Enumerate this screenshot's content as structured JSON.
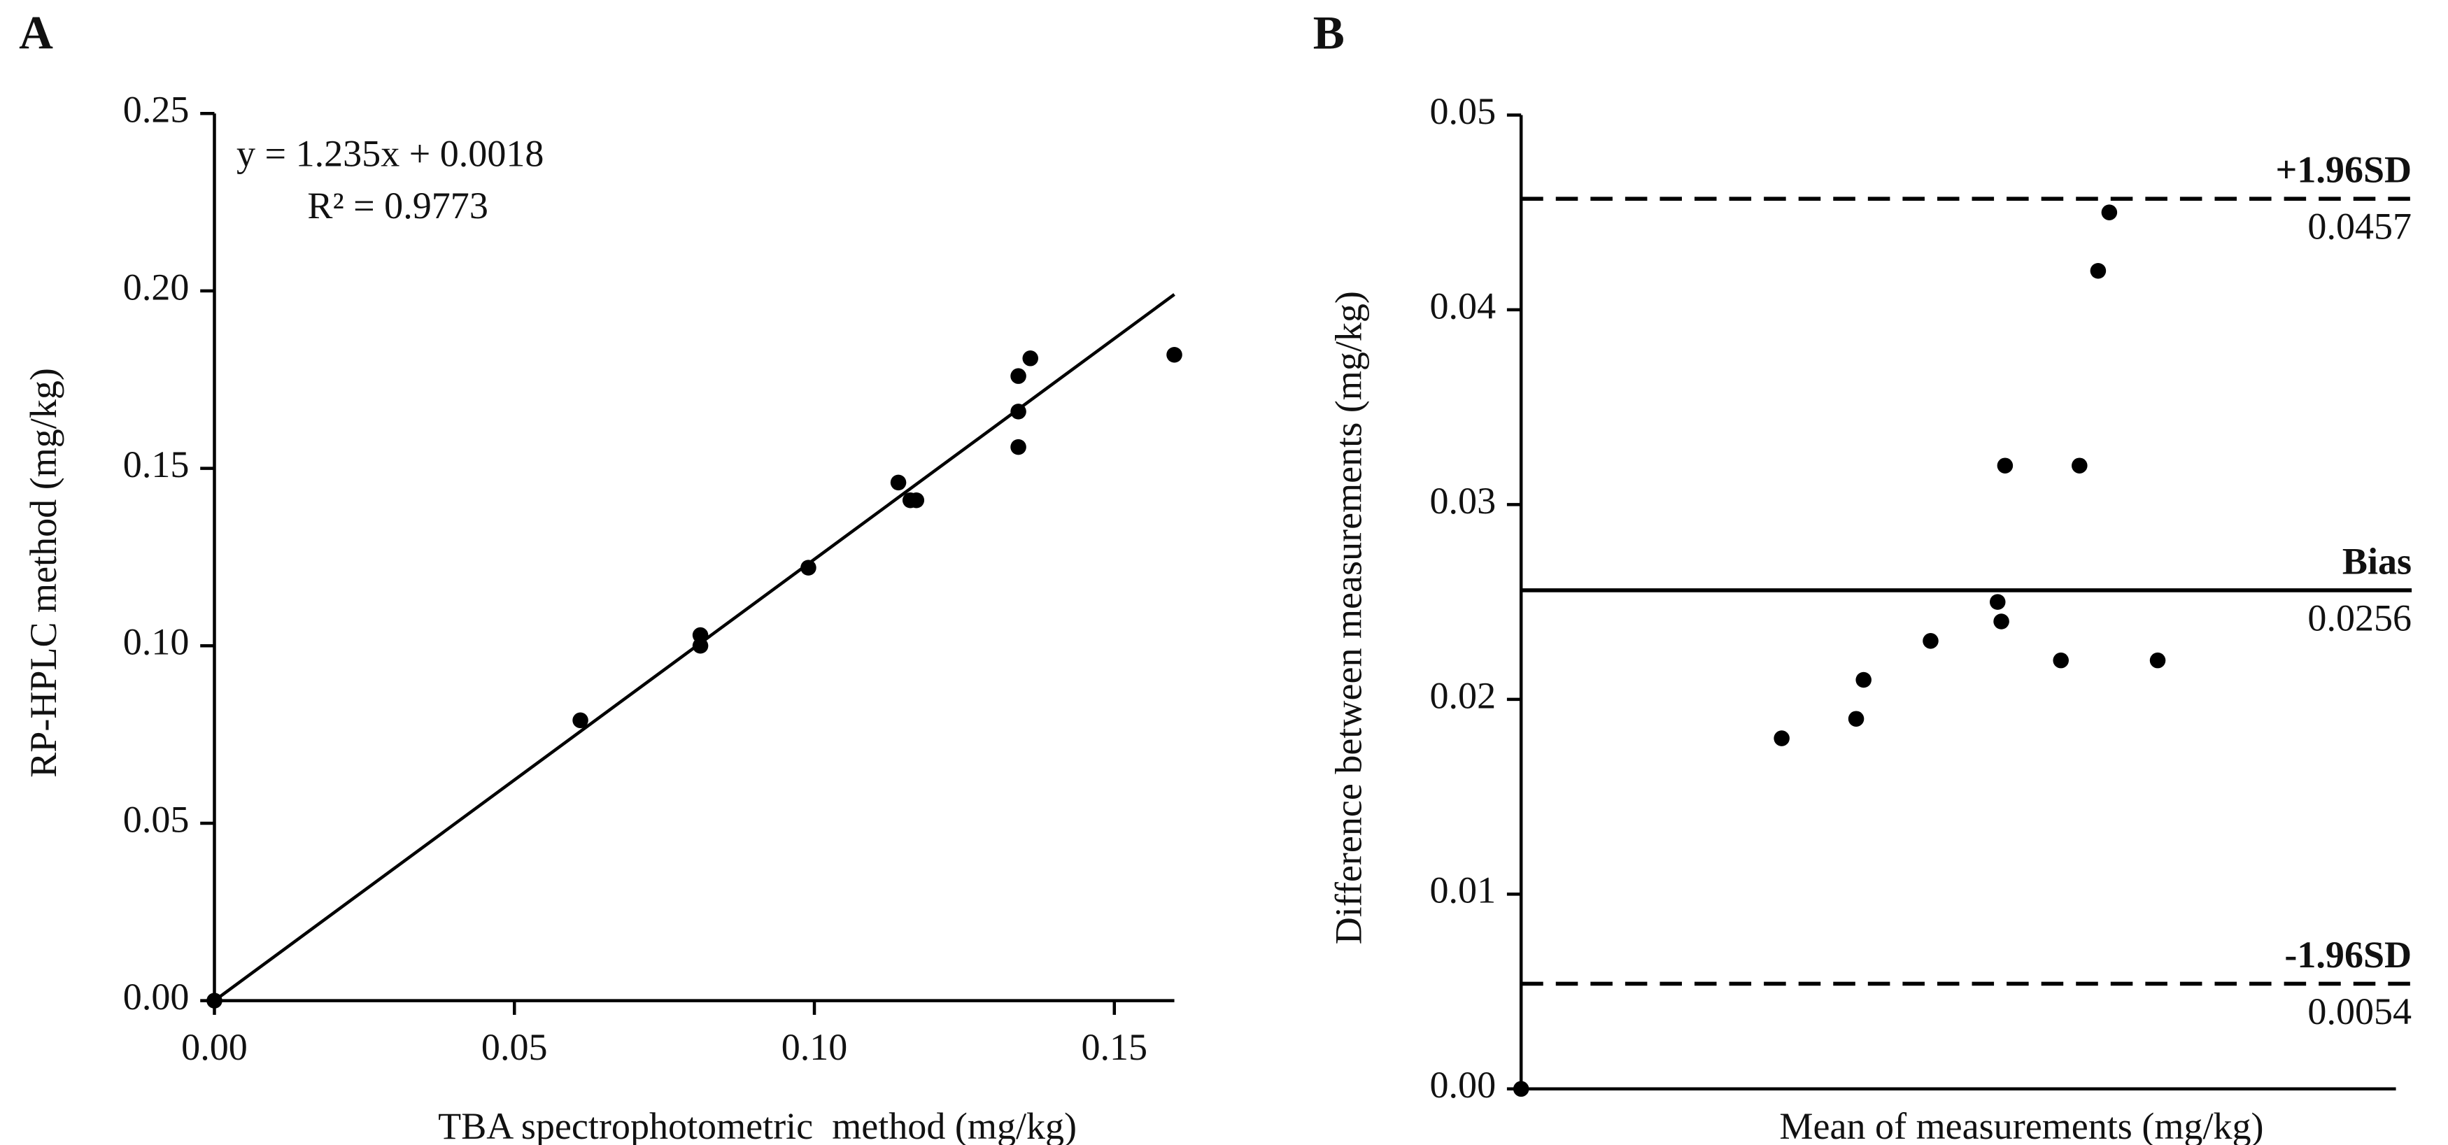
{
  "chart_data": [
    {
      "type": "scatter",
      "panel": "A",
      "annotations": [
        "y = 1.235x + 0.0018",
        "R² = 0.9773"
      ],
      "x_label": "TBA spectrophotometric  method (mg/kg)",
      "y_label": "RP-HPLC method (mg/kg)",
      "x": [
        0,
        0.061,
        0.081,
        0.081,
        0.099,
        0.114,
        0.116,
        0.117,
        0.134,
        0.134,
        0.134,
        0.136,
        0.16
      ],
      "values": [
        0,
        0.079,
        0.103,
        0.1,
        0.122,
        0.146,
        0.141,
        0.141,
        0.176,
        0.166,
        0.156,
        0.181,
        0.182
      ],
      "color": "#000000",
      "trendline": {
        "x": [
          0,
          0.16
        ],
        "y": [
          0,
          0.199
        ]
      },
      "xlim": [
        0,
        0.16
      ],
      "ylim": [
        0,
        0.25
      ],
      "xticks": [
        {
          "value": 0,
          "label": "0.00"
        },
        0.05,
        {
          "value": 0.1,
          "label": "0.10"
        },
        0.15
      ],
      "yticks": [
        {
          "value": 0,
          "label": "0.00"
        },
        0.05,
        {
          "value": 0.1,
          "label": "0.10"
        },
        0.15,
        {
          "value": 0.2,
          "label": "0.20"
        },
        0.25
      ]
    },
    {
      "type": "scatter",
      "panel": "B",
      "x_label": "Mean of measurements (mg/kg)",
      "y_label": "Difference between measurements (mg/kg)",
      "x": [
        0,
        0.07,
        0.09,
        0.092,
        0.11,
        0.128,
        0.129,
        0.13,
        0.145,
        0.15,
        0.155,
        0.158,
        0.171
      ],
      "values": [
        0,
        0.018,
        0.019,
        0.021,
        0.023,
        0.025,
        0.024,
        0.032,
        0.022,
        0.032,
        0.042,
        0.045,
        0.022
      ],
      "color": "#000000",
      "reference_lines": [
        {
          "name": "+1.96SD",
          "value": 0.0457,
          "style": "dashed"
        },
        {
          "name": "Bias",
          "value": 0.0256,
          "style": "solid"
        },
        {
          "name": "-1.96SD",
          "value": 0.0054,
          "style": "dashed"
        }
      ],
      "xlim": [
        0,
        0.235
      ],
      "ylim": [
        0,
        0.05
      ],
      "yticks": [
        {
          "value": 0,
          "label": "0.00"
        },
        0.01,
        0.02,
        0.03,
        0.04,
        0.05
      ]
    }
  ]
}
